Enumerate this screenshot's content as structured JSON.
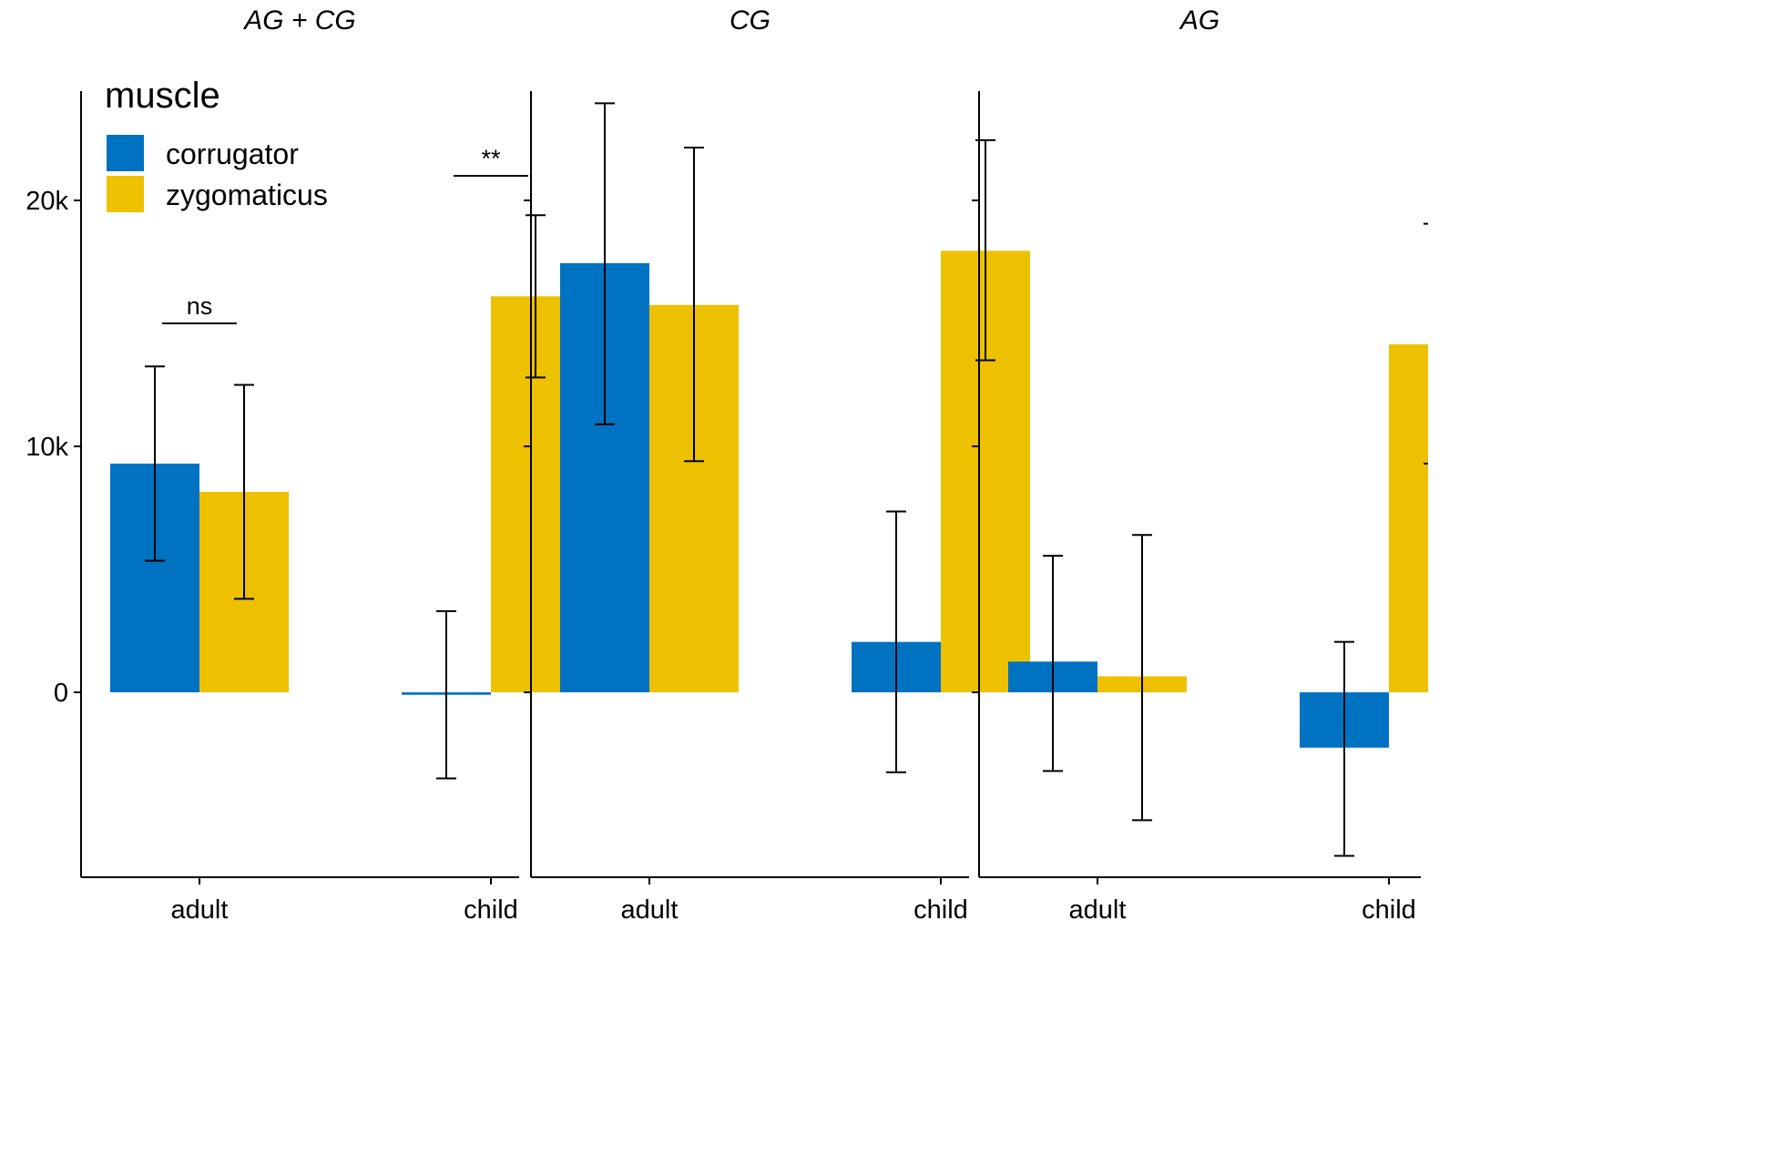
{
  "chart_data": {
    "type": "bar",
    "facet_titles": [
      "AG + CG",
      "CG",
      "AG"
    ],
    "categories": [
      "adult",
      "child"
    ],
    "y_ticks": [
      {
        "value": 0,
        "label": "0"
      },
      {
        "value": 10000,
        "label": "10k"
      },
      {
        "value": 20000,
        "label": "20k"
      }
    ],
    "ylim": [
      -7500,
      24500
    ],
    "legend": {
      "title": "muscle",
      "placement": "top-left",
      "entries": [
        {
          "name": "corrugator",
          "color": "#0072C2"
        },
        {
          "name": "zygomaticus",
          "color": "#EDC100"
        }
      ]
    },
    "panels": [
      {
        "title": "AG + CG",
        "series": [
          {
            "name": "corrugator",
            "values": [
              9300,
              -100
            ],
            "err_low": [
              5350,
              -3500
            ],
            "err_high": [
              13250,
              3300
            ]
          },
          {
            "name": "zygomaticus",
            "values": [
              8150,
              16100
            ],
            "err_low": [
              3800,
              12800
            ],
            "err_high": [
              12500,
              19400
            ]
          }
        ],
        "annotations": [
          {
            "text": "ns",
            "category": "adult",
            "y": 15000
          },
          {
            "text": "**",
            "category": "child",
            "y": 21000
          }
        ]
      },
      {
        "title": "CG",
        "series": [
          {
            "name": "corrugator",
            "values": [
              17450,
              2050
            ],
            "err_low": [
              10900,
              -3250
            ],
            "err_high": [
              23950,
              7350
            ]
          },
          {
            "name": "zygomaticus",
            "values": [
              15750,
              17950
            ],
            "err_low": [
              9400,
              13500
            ],
            "err_high": [
              22150,
              22450
            ]
          }
        ],
        "annotations": []
      },
      {
        "title": "AG",
        "series": [
          {
            "name": "corrugator",
            "values": [
              1250,
              -2250
            ],
            "err_low": [
              -3200,
              -6650
            ],
            "err_high": [
              5550,
              2050
            ]
          },
          {
            "name": "zygomaticus",
            "values": [
              650,
              14150
            ],
            "err_low": [
              -5200,
              9300
            ],
            "err_high": [
              6400,
              19050
            ]
          }
        ],
        "annotations": []
      }
    ]
  }
}
